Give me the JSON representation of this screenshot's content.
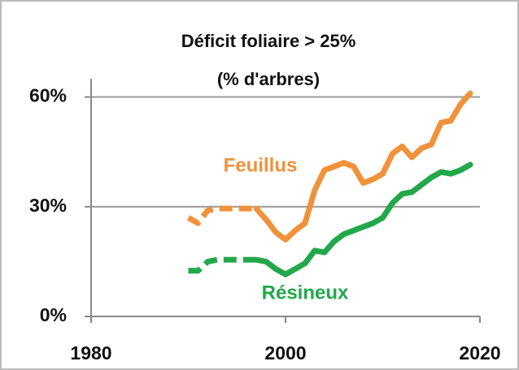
{
  "chart_data": {
    "type": "line",
    "title": "Déficit foliaire > 25%",
    "subtitle": "(% d'arbres)",
    "x": [
      1990,
      1991,
      1992,
      1993,
      1994,
      1995,
      1996,
      1997,
      1998,
      1999,
      2000,
      2001,
      2002,
      2003,
      2004,
      2005,
      2006,
      2007,
      2008,
      2009,
      2010,
      2011,
      2012,
      2013,
      2014,
      2015,
      2016,
      2017,
      2018,
      2019
    ],
    "series": [
      {
        "name": "Feuillus",
        "color": "#f0923a",
        "values": [
          27,
          25.5,
          29,
          29.5,
          29.5,
          29.5,
          29.5,
          29.5,
          26.5,
          23,
          21,
          23.5,
          25.5,
          34.5,
          40,
          41,
          42,
          41,
          36.5,
          37.5,
          39,
          44.5,
          46.5,
          43.5,
          46,
          47,
          53,
          53.5,
          58,
          61
        ]
      },
      {
        "name": "Résineux",
        "color": "#22a84a",
        "values": [
          12.5,
          12.5,
          15,
          15.5,
          15.5,
          15.5,
          15.5,
          15.5,
          15,
          13,
          11.5,
          13,
          14.5,
          18,
          17.5,
          20.5,
          22.5,
          23.5,
          24.5,
          25.5,
          27,
          31,
          33.5,
          34,
          36,
          38,
          39.5,
          39,
          40,
          41.5
        ]
      }
    ],
    "dash_until": 1997,
    "xlim": [
      1980,
      2020
    ],
    "xticks": [
      1980,
      2000,
      2020
    ],
    "ylim": [
      0,
      65
    ],
    "yticks": [
      {
        "value": 0,
        "label": "0%"
      },
      {
        "value": 30,
        "label": "30%"
      },
      {
        "value": 60,
        "label": "60%"
      }
    ],
    "grid": true
  }
}
